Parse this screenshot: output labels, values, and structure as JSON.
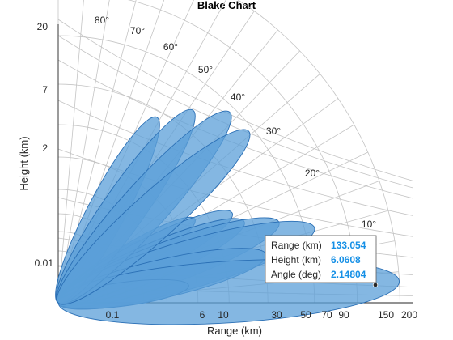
{
  "chart_data": {
    "type": "blake",
    "title": "Blake Chart",
    "xlabel": "Range (km)",
    "ylabel": "Height (km)",
    "x_ticks": [
      "0.1",
      "6",
      "10",
      "30",
      "50",
      "70",
      "90",
      "150",
      "200"
    ],
    "y_ticks": [
      "20",
      "7",
      "2",
      "0.01"
    ],
    "angle_labels": [
      "80°",
      "70°",
      "60°",
      "50°",
      "40°",
      "30°",
      "20°",
      "10°"
    ],
    "grid": true,
    "series": [
      {
        "values": []
      }
    ],
    "lobes": [
      {
        "angle_deg": 36.0,
        "extent_pct": 29
      },
      {
        "angle_deg": 31.5,
        "extent_pct": 45
      },
      {
        "angle_deg": 27.3,
        "extent_pct": 55
      },
      {
        "angle_deg": 23.5,
        "extent_pct": 57
      },
      {
        "angle_deg": 20.0,
        "extent_pct": 66
      },
      {
        "angle_deg": 16.3,
        "extent_pct": 75
      },
      {
        "angle_deg": 13.0,
        "extent_pct": 60
      },
      {
        "angle_deg": 7.5,
        "extent_pct": 37
      },
      {
        "angle_deg": 3.6,
        "extent_pct": 96
      },
      {
        "angle_deg": 62.0,
        "extent_pct": 59
      },
      {
        "angle_deg": 55.0,
        "extent_pct": 66
      },
      {
        "angle_deg": 48.0,
        "extent_pct": 72
      },
      {
        "angle_deg": 42.0,
        "extent_pct": 72
      }
    ],
    "datatip": {
      "range_label": "Range (km)",
      "range_value": "133.054",
      "height_label": "Height (km)",
      "height_value": "6.0608",
      "angle_label": "Angle (deg)",
      "angle_value": "2.14804"
    }
  }
}
